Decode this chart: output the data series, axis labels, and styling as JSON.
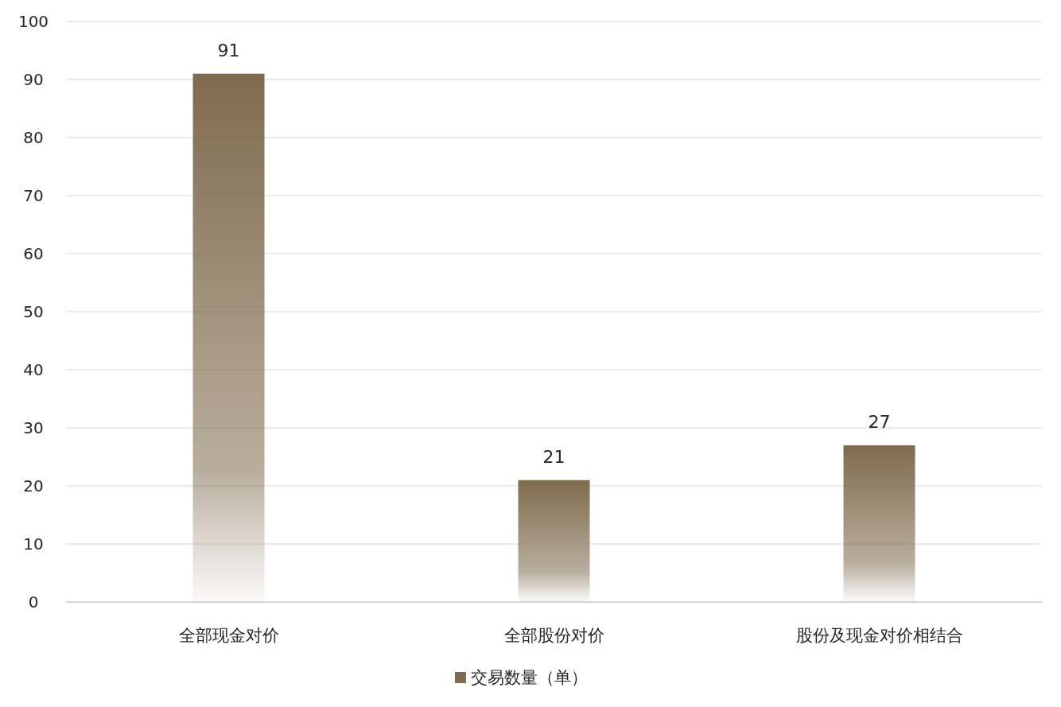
{
  "chart_data": {
    "type": "bar",
    "categories": [
      "全部现金对价",
      "全部股份对价",
      "股份及现金对价相结合"
    ],
    "series": [
      {
        "name": "交易数量（单）",
        "color": "#7f6b4e",
        "values": [
          91,
          21,
          27
        ]
      }
    ],
    "ylim": [
      0,
      100
    ],
    "yticks": [
      0,
      10,
      20,
      30,
      40,
      50,
      60,
      70,
      80,
      90,
      100
    ],
    "grid": "y",
    "data_labels": true,
    "legend": "bottom"
  }
}
